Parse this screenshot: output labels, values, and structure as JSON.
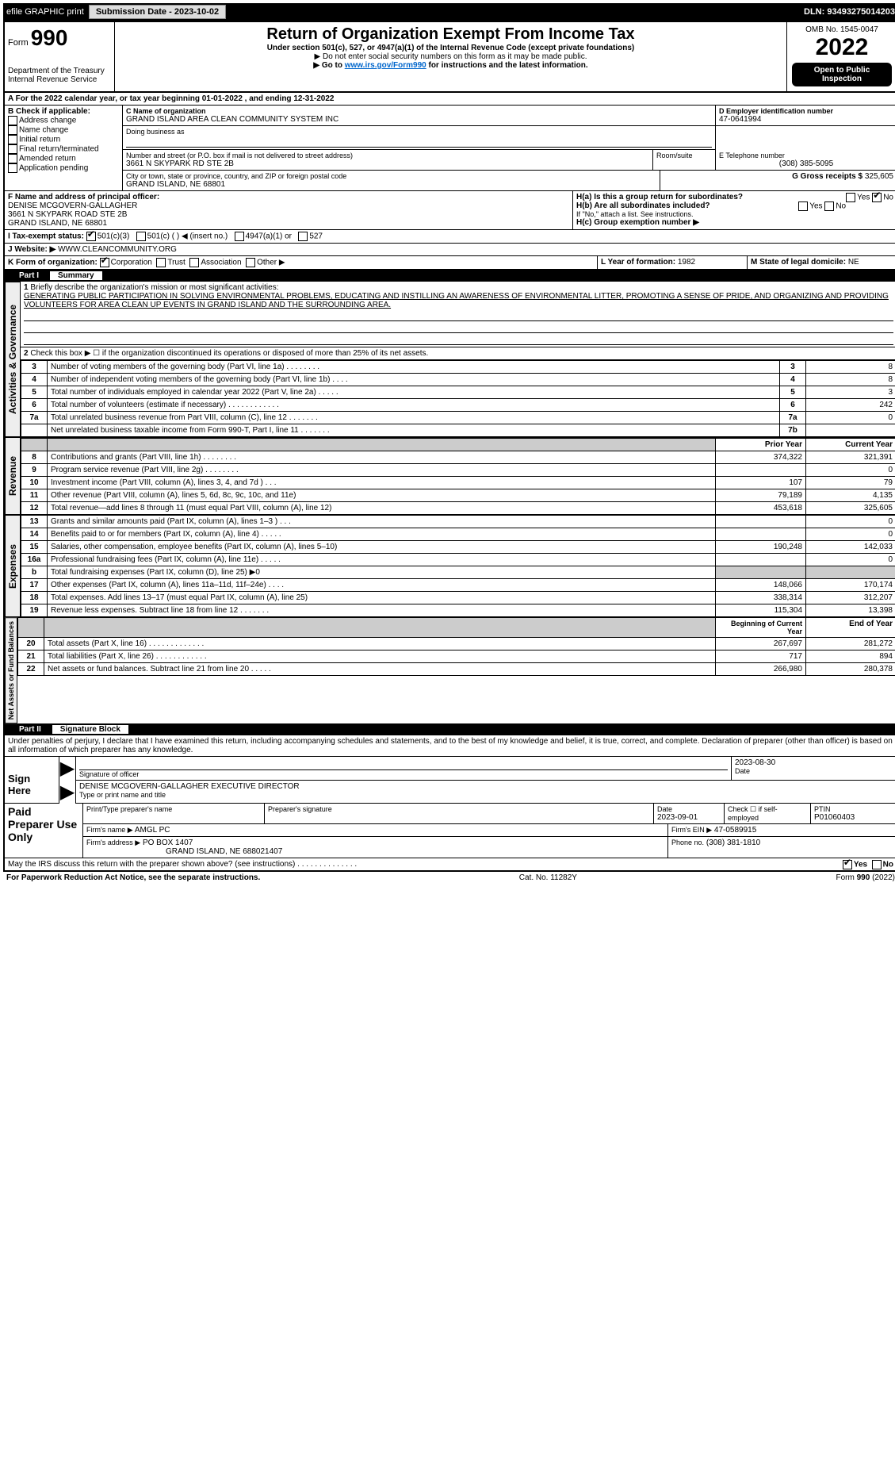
{
  "top": {
    "efile": "efile GRAPHIC print",
    "submission": "Submission Date - 2023-10-02",
    "dln": "DLN: 93493275014203"
  },
  "hdr": {
    "form": "Form",
    "num": "990",
    "title": "Return of Organization Exempt From Income Tax",
    "sub1": "Under section 501(c), 527, or 4947(a)(1) of the Internal Revenue Code (except private foundations)",
    "sub2": "▶ Do not enter social security numbers on this form as it may be made public.",
    "sub3": "▶ Go to ",
    "sub3_link": "www.irs.gov/Form990",
    "sub3_tail": " for instructions and the latest information.",
    "dept": "Department of the Treasury",
    "irs": "Internal Revenue Service",
    "omb": "OMB No. 1545-0047",
    "year": "2022",
    "open": "Open to Public Inspection"
  },
  "periodA": "A For the 2022 calendar year, or tax year beginning 01-01-2022    , and ending 12-31-2022",
  "B": {
    "label": "B Check if applicable:",
    "opts": [
      "Address change",
      "Name change",
      "Initial return",
      "Final return/terminated",
      "Amended return",
      "Application pending"
    ]
  },
  "C": {
    "name_lbl": "C Name of organization",
    "name": "GRAND ISLAND AREA CLEAN COMMUNITY SYSTEM INC",
    "dba_lbl": "Doing business as",
    "addr_lbl": "Number and street (or P.O. box if mail is not delivered to street address)",
    "room_lbl": "Room/suite",
    "addr": "3661 N SKYPARK RD STE 2B",
    "city_lbl": "City or town, state or province, country, and ZIP or foreign postal code",
    "city": "GRAND ISLAND, NE  68801"
  },
  "D": {
    "lbl": "D Employer identification number",
    "val": "47-0641994"
  },
  "E": {
    "lbl": "E Telephone number",
    "val": "(308) 385-5095"
  },
  "G": {
    "lbl": "G Gross receipts $",
    "val": "325,605"
  },
  "F": {
    "lbl": "F  Name and address of principal officer:",
    "l1": "DENISE MCGOVERN-GALLAGHER",
    "l2": "3661 N SKYPARK ROAD STE 2B",
    "l3": "GRAND ISLAND, NE  68801"
  },
  "H": {
    "a": "H(a)  Is this a group return for subordinates?",
    "b": "H(b)  Are all subordinates included?",
    "b_note": "If \"No,\" attach a list. See instructions.",
    "c": "H(c)  Group exemption number ▶"
  },
  "I": {
    "lbl": "I  Tax-exempt status:",
    "o1": "501(c)(3)",
    "o2": "501(c) (   ) ◀ (insert no.)",
    "o3": "4947(a)(1) or",
    "o4": "527"
  },
  "J": {
    "lbl": "J  Website: ▶",
    "val": "WWW.CLEANCOMMUNITY.ORG"
  },
  "K": {
    "lbl": "K Form of organization:",
    "o1": "Corporation",
    "o2": "Trust",
    "o3": "Association",
    "o4": "Other ▶"
  },
  "L": {
    "lbl": "L Year of formation:",
    "val": "1982"
  },
  "M": {
    "lbl": "M State of legal domicile:",
    "val": "NE"
  },
  "parts": {
    "p1": "Part I",
    "p1t": "Summary",
    "p2": "Part II",
    "p2t": "Signature Block"
  },
  "tabs": {
    "act": "Activities & Governance",
    "rev": "Revenue",
    "exp": "Expenses",
    "net": "Net Assets or Fund Balances"
  },
  "summary": {
    "l1": "Briefly describe the organization's mission or most significant activities:",
    "mission": "GENERATING PUBLIC PARTICIPATION IN SOLVING ENVIRONMENTAL PROBLEMS, EDUCATING AND INSTILLING AN AWARENESS OF ENVIRONMENTAL LITTER, PROMOTING A SENSE OF PRIDE, AND ORGANIZING AND PROVIDING VOLUNTEERS FOR AREA CLEAN UP EVENTS IN GRAND ISLAND AND THE SURROUNDING AREA.",
    "l2": "Check this box ▶ ☐  if the organization discontinued its operations or disposed of more than 25% of its net assets.",
    "rows_ag": [
      {
        "n": "3",
        "t": "Number of voting members of the governing body (Part VI, line 1a)   .   .   .   .   .   .   .   .",
        "b": "3",
        "v": "8"
      },
      {
        "n": "4",
        "t": "Number of independent voting members of the governing body (Part VI, line 1b)   .   .   .   .",
        "b": "4",
        "v": "8"
      },
      {
        "n": "5",
        "t": "Total number of individuals employed in calendar year 2022 (Part V, line 2a)  .   .   .   .   .",
        "b": "5",
        "v": "3"
      },
      {
        "n": "6",
        "t": "Total number of volunteers (estimate if necessary)   .   .   .   .   .   .   .   .   .   .   .   .",
        "b": "6",
        "v": "242"
      },
      {
        "n": "7a",
        "t": "Total unrelated business revenue from Part VIII, column (C), line 12   .   .   .   .   .   .   .",
        "b": "7a",
        "v": "0"
      },
      {
        "n": "",
        "t": "Net unrelated business taxable income from Form 990-T, Part I, line 11   .   .   .   .   .   .   .",
        "b": "7b",
        "v": ""
      }
    ],
    "hdr_prior": "Prior Year",
    "hdr_curr": "Current Year",
    "rows_rev": [
      {
        "n": "8",
        "t": "Contributions and grants (Part VIII, line 1h)   .   .   .   .   .   .   .   .",
        "p": "374,322",
        "c": "321,391"
      },
      {
        "n": "9",
        "t": "Program service revenue (Part VIII, line 2g)   .   .   .   .   .   .   .   .",
        "p": "",
        "c": "0"
      },
      {
        "n": "10",
        "t": "Investment income (Part VIII, column (A), lines 3, 4, and 7d )   .   .   .",
        "p": "107",
        "c": "79"
      },
      {
        "n": "11",
        "t": "Other revenue (Part VIII, column (A), lines 5, 6d, 8c, 9c, 10c, and 11e)",
        "p": "79,189",
        "c": "4,135"
      },
      {
        "n": "12",
        "t": "Total revenue—add lines 8 through 11 (must equal Part VIII, column (A), line 12)",
        "p": "453,618",
        "c": "325,605"
      }
    ],
    "rows_exp": [
      {
        "n": "13",
        "t": "Grants and similar amounts paid (Part IX, column (A), lines 1–3 )   .   .   .",
        "p": "",
        "c": "0"
      },
      {
        "n": "14",
        "t": "Benefits paid to or for members (Part IX, column (A), line 4)   .   .   .   .   .",
        "p": "",
        "c": "0"
      },
      {
        "n": "15",
        "t": "Salaries, other compensation, employee benefits (Part IX, column (A), lines 5–10)",
        "p": "190,248",
        "c": "142,033"
      },
      {
        "n": "16a",
        "t": "Professional fundraising fees (Part IX, column (A), line 11e)   .   .   .   .   .",
        "p": "",
        "c": "0"
      },
      {
        "n": "b",
        "t": "Total fundraising expenses (Part IX, column (D), line 25) ▶0",
        "p": "SHADE",
        "c": "SHADE"
      },
      {
        "n": "17",
        "t": "Other expenses (Part IX, column (A), lines 11a–11d, 11f–24e)   .   .   .   .",
        "p": "148,066",
        "c": "170,174"
      },
      {
        "n": "18",
        "t": "Total expenses. Add lines 13–17 (must equal Part IX, column (A), line 25)",
        "p": "338,314",
        "c": "312,207"
      },
      {
        "n": "19",
        "t": "Revenue less expenses. Subtract line 18 from line 12   .   .   .   .   .   .   .",
        "p": "115,304",
        "c": "13,398"
      }
    ],
    "hdr_beg": "Beginning of Current Year",
    "hdr_end": "End of Year",
    "rows_net": [
      {
        "n": "20",
        "t": "Total assets (Part X, line 16)   .   .   .   .   .   .   .   .   .   .   .   .   .",
        "p": "267,697",
        "c": "281,272"
      },
      {
        "n": "21",
        "t": "Total liabilities (Part X, line 26)   .   .   .   .   .   .   .   .   .   .   .   .",
        "p": "717",
        "c": "894"
      },
      {
        "n": "22",
        "t": "Net assets or fund balances. Subtract line 21 from line 20   .   .   .   .   .",
        "p": "266,980",
        "c": "280,378"
      }
    ]
  },
  "sig": {
    "perjury": "Under penalties of perjury, I declare that I have examined this return, including accompanying schedules and statements, and to the best of my knowledge and belief, it is true, correct, and complete. Declaration of preparer (other than officer) is based on all information of which preparer has any knowledge.",
    "sign_here": "Sign Here",
    "sig_officer": "Signature of officer",
    "date_lbl": "Date",
    "date": "2023-08-30",
    "name": "DENISE MCGOVERN-GALLAGHER  EXECUTIVE DIRECTOR",
    "name_lbl": "Type or print name and title",
    "paid": "Paid Preparer Use Only",
    "prep_name_lbl": "Print/Type preparer's name",
    "prep_sig_lbl": "Preparer's signature",
    "prep_date": "2023-09-01",
    "check_self": "Check ☐ if self-employed",
    "ptin_lbl": "PTIN",
    "ptin": "P01060403",
    "firm_name_lbl": "Firm's name   ▶",
    "firm_name": "AMGL PC",
    "firm_ein_lbl": "Firm's EIN ▶",
    "firm_ein": "47-0589915",
    "firm_addr_lbl": "Firm's address ▶",
    "firm_addr1": "PO BOX 1407",
    "firm_addr2": "GRAND ISLAND, NE  688021407",
    "phone_lbl": "Phone no.",
    "phone": "(308) 381-1810",
    "discuss": "May the IRS discuss this return with the preparer shown above? (see instructions)   .   .   .   .   .   .   .   .   .   .   .   .   .   .",
    "yes": "Yes",
    "no": "No"
  },
  "footer": {
    "pra": "For Paperwork Reduction Act Notice, see the separate instructions.",
    "cat": "Cat. No. 11282Y",
    "form": "Form 990 (2022)"
  }
}
